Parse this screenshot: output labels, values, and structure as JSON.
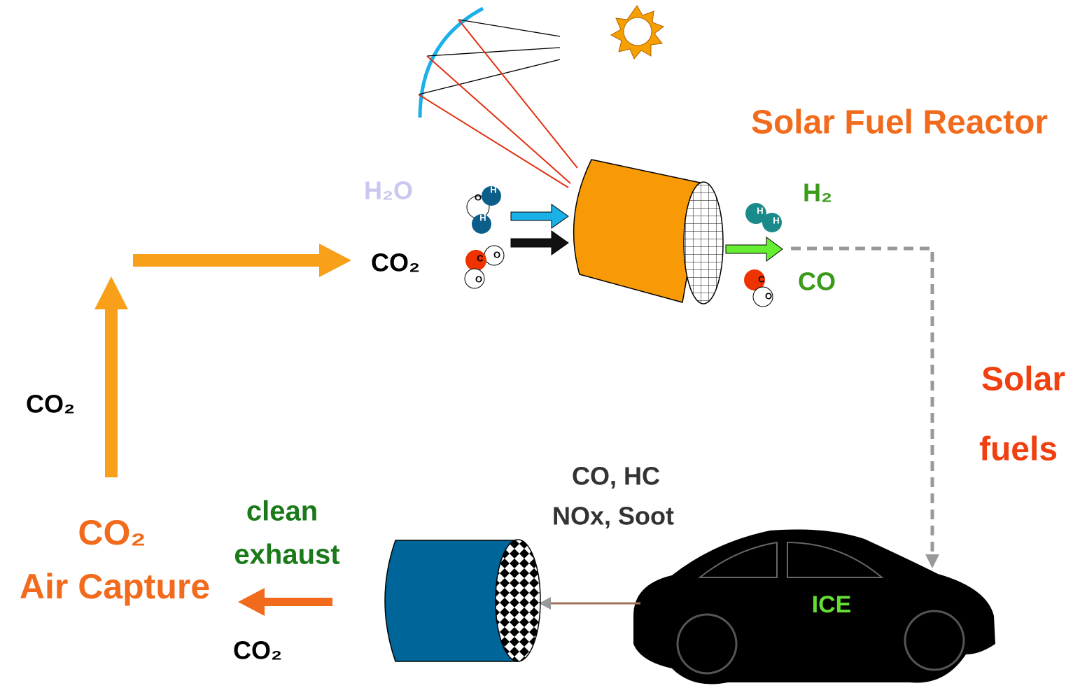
{
  "title": "Solar Fuel Reactor",
  "reactor_inputs": {
    "water": "H₂O",
    "carbon_dioxide": "CO₂"
  },
  "reactor_outputs": {
    "hydrogen": "H₂",
    "carbon_monoxide": "CO"
  },
  "atoms": {
    "hydrogen": "H",
    "oxygen": "O",
    "carbon": "C"
  },
  "solar_fuels": {
    "line1": "Solar",
    "line2": "fuels"
  },
  "engine_emissions": {
    "line1": "CO, HC",
    "line2": "NOx, Soot"
  },
  "engine": "ICE",
  "exhaust": {
    "line1": "clean",
    "line2": "exhaust",
    "gas": "CO₂"
  },
  "air_capture": {
    "line1": "CO₂",
    "line2": "Air Capture"
  },
  "captured_flow": "CO₂"
}
